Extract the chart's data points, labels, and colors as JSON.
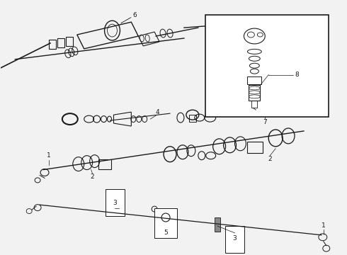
{
  "bg_color": "#f2f2f2",
  "line_color": "#1a1a1a",
  "white": "#ffffff",
  "label_fs": 6.5,
  "title_fs": 7,
  "fig_w": 4.9,
  "fig_h": 3.6,
  "dpi": 100
}
